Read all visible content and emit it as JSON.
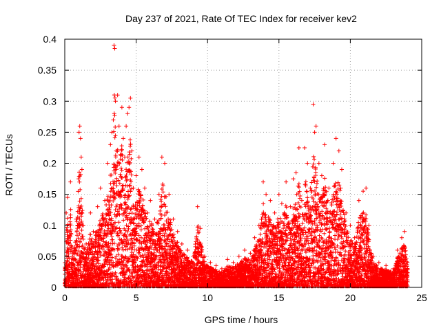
{
  "chart_data": {
    "type": "scatter",
    "title": "Day 237 of 2021, Rate Of TEC Index for receiver kev2",
    "xlabel": "GPS time / hours",
    "ylabel": "ROTI / TECUs",
    "xlim": [
      0,
      25
    ],
    "ylim": [
      0,
      0.4
    ],
    "xticks": [
      0,
      5,
      10,
      15,
      20,
      25
    ],
    "yticks": [
      0,
      0.05,
      0.1,
      0.15,
      0.2,
      0.25,
      0.3,
      0.35,
      0.4
    ],
    "xtick_labels": [
      "0",
      "5",
      "10",
      "15",
      "20",
      "25"
    ],
    "ytick_labels": [
      "0",
      "0.05",
      "0.1",
      "0.15",
      "0.2",
      "0.25",
      "0.3",
      "0.35",
      "0.4"
    ],
    "grid": true,
    "marker": "plus",
    "marker_color": "#ff0000",
    "series": [
      {
        "points": [
          [
            0.1,
            0.12
          ],
          [
            0.2,
            0.145
          ],
          [
            0.3,
            0.08
          ],
          [
            0.4,
            0.17
          ],
          [
            0.5,
            0.06
          ],
          [
            0.8,
            0.11
          ],
          [
            1.0,
            0.25
          ],
          [
            1.05,
            0.26
          ],
          [
            1.1,
            0.24
          ],
          [
            1.15,
            0.21
          ],
          [
            1.2,
            0.19
          ],
          [
            1.3,
            0.1
          ],
          [
            1.5,
            0.07
          ],
          [
            1.8,
            0.12
          ],
          [
            2.0,
            0.09
          ],
          [
            2.3,
            0.13
          ],
          [
            2.5,
            0.16
          ],
          [
            2.8,
            0.14
          ],
          [
            3.0,
            0.2
          ],
          [
            3.2,
            0.23
          ],
          [
            3.3,
            0.25
          ],
          [
            3.4,
            0.27
          ],
          [
            3.45,
            0.39
          ],
          [
            3.5,
            0.385
          ],
          [
            3.55,
            0.3
          ],
          [
            3.6,
            0.22
          ],
          [
            3.7,
            0.31
          ],
          [
            3.8,
            0.26
          ],
          [
            4.0,
            0.29
          ],
          [
            4.1,
            0.24
          ],
          [
            4.2,
            0.21
          ],
          [
            4.3,
            0.26
          ],
          [
            4.4,
            0.28
          ],
          [
            4.5,
            0.29
          ],
          [
            4.6,
            0.305
          ],
          [
            4.7,
            0.22
          ],
          [
            4.8,
            0.16
          ],
          [
            5.0,
            0.18
          ],
          [
            5.2,
            0.21
          ],
          [
            5.4,
            0.19
          ],
          [
            5.6,
            0.16
          ],
          [
            5.8,
            0.12
          ],
          [
            6.0,
            0.14
          ],
          [
            6.3,
            0.11
          ],
          [
            6.6,
            0.15
          ],
          [
            6.8,
            0.21
          ],
          [
            7.0,
            0.2
          ],
          [
            7.3,
            0.15
          ],
          [
            7.6,
            0.11
          ],
          [
            7.9,
            0.09
          ],
          [
            8.2,
            0.07
          ],
          [
            8.6,
            0.06
          ],
          [
            9.0,
            0.05
          ],
          [
            9.3,
            0.13
          ],
          [
            9.5,
            0.095
          ],
          [
            9.8,
            0.05
          ],
          [
            10.2,
            0.04
          ],
          [
            10.6,
            0.035
          ],
          [
            11.0,
            0.03
          ],
          [
            11.4,
            0.045
          ],
          [
            11.8,
            0.04
          ],
          [
            12.2,
            0.05
          ],
          [
            12.6,
            0.06
          ],
          [
            13.0,
            0.055
          ],
          [
            13.3,
            0.08
          ],
          [
            13.6,
            0.1
          ],
          [
            13.9,
            0.17
          ],
          [
            14.1,
            0.15
          ],
          [
            14.4,
            0.14
          ],
          [
            14.7,
            0.12
          ],
          [
            15.0,
            0.15
          ],
          [
            15.2,
            0.135
          ],
          [
            15.5,
            0.17
          ],
          [
            15.8,
            0.13
          ],
          [
            16.0,
            0.175
          ],
          [
            16.2,
            0.185
          ],
          [
            16.4,
            0.225
          ],
          [
            16.6,
            0.14
          ],
          [
            16.8,
            0.225
          ],
          [
            17.0,
            0.2
          ],
          [
            17.2,
            0.16
          ],
          [
            17.4,
            0.295
          ],
          [
            17.5,
            0.25
          ],
          [
            17.6,
            0.26
          ],
          [
            17.8,
            0.2
          ],
          [
            18.0,
            0.18
          ],
          [
            18.2,
            0.23
          ],
          [
            18.5,
            0.16
          ],
          [
            18.8,
            0.2
          ],
          [
            19.0,
            0.24
          ],
          [
            19.2,
            0.22
          ],
          [
            19.4,
            0.19
          ],
          [
            19.7,
            0.12
          ],
          [
            20.0,
            0.1
          ],
          [
            20.3,
            0.08
          ],
          [
            20.6,
            0.14
          ],
          [
            20.9,
            0.155
          ],
          [
            21.1,
            0.16
          ],
          [
            21.3,
            0.1
          ],
          [
            21.6,
            0.05
          ],
          [
            22.0,
            0.04
          ],
          [
            22.5,
            0.035
          ],
          [
            23.0,
            0.03
          ],
          [
            23.3,
            0.06
          ],
          [
            23.6,
            0.08
          ],
          [
            23.8,
            0.09
          ],
          [
            24.0,
            0.04
          ]
        ]
      }
    ]
  }
}
